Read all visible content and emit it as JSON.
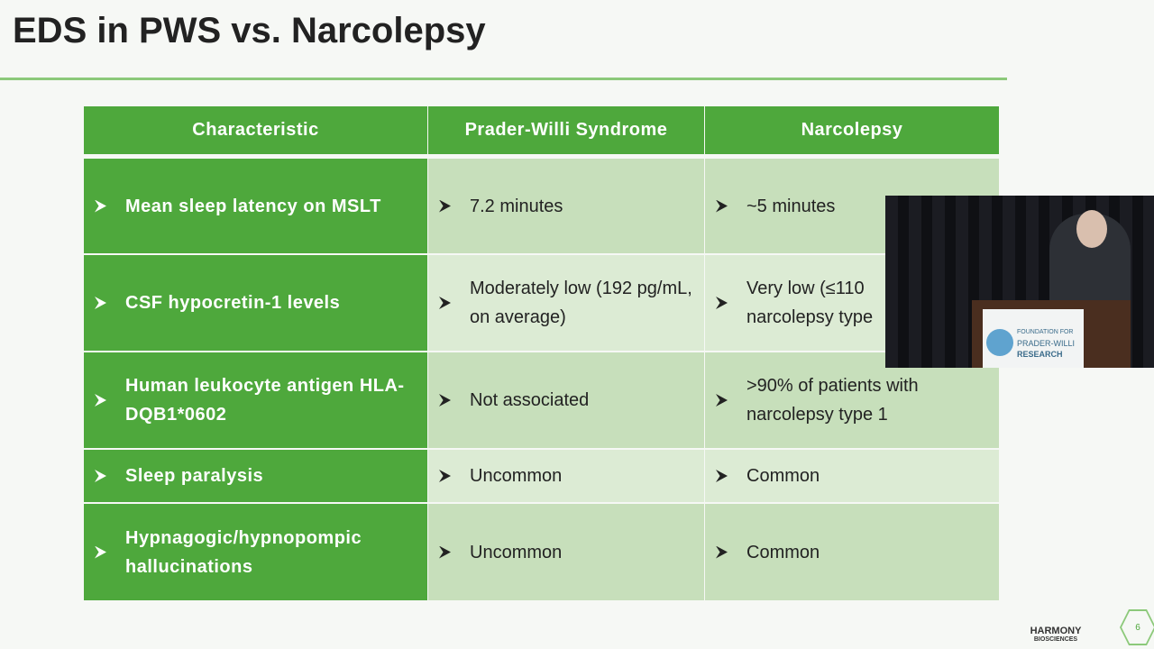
{
  "header": {
    "title": "EDS in PWS vs. Narcolepsy"
  },
  "table": {
    "columns": [
      "Characteristic",
      "Prader-Willi Syndrome",
      "Narcolepsy"
    ],
    "rows": [
      [
        "Mean sleep latency on MSLT",
        "7.2 minutes",
        "~5 minutes"
      ],
      [
        "CSF hypocretin-1 levels",
        "Moderately low (192 pg/mL, on average)",
        "Very low (≤110 narcolepsy type"
      ],
      [
        "Human leukocyte antigen HLA-DQB1*0602",
        "Not associated",
        ">90% of patients with narcolepsy type 1"
      ],
      [
        "Sleep paralysis",
        "Uncommon",
        "Common"
      ],
      [
        "Hypnagogic/hypnopompic hallucinations",
        "Uncommon",
        "Common"
      ]
    ]
  },
  "video": {
    "podium_sign": [
      "FOUNDATION FOR",
      "PRADER-WILLI",
      "RESEARCH"
    ]
  },
  "footer": {
    "logo": "HARMONY",
    "logo_sub": "BIOSCIENCES",
    "page_number": "6"
  }
}
